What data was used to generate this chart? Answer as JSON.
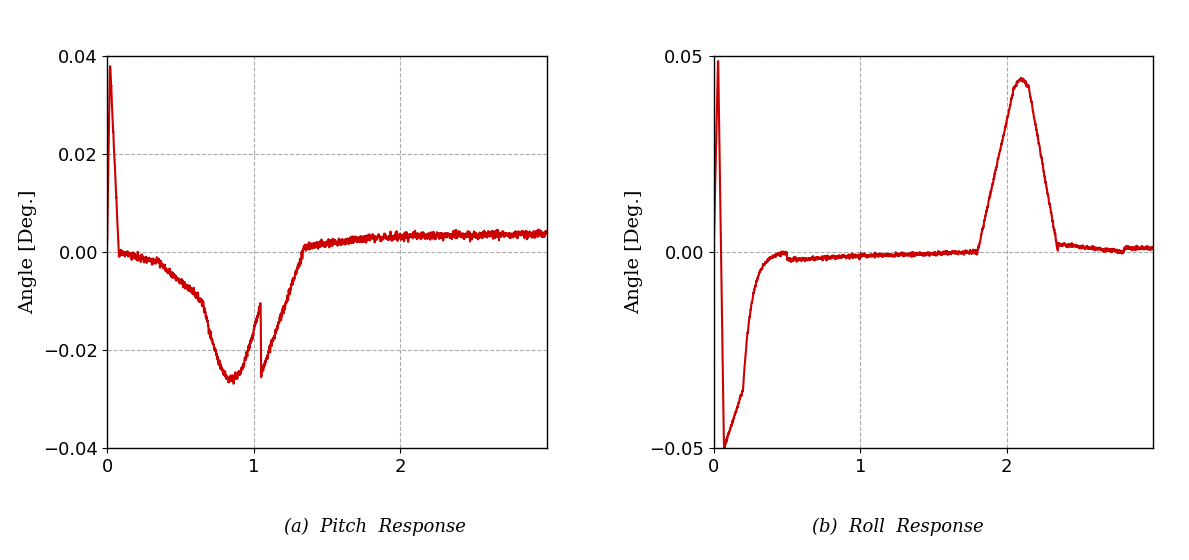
{
  "subplot_a_title": "(a)  Pitch  Response",
  "subplot_b_title": "(b)  Roll  Response",
  "ylabel": "Angle [Deg.]",
  "pitch_xlim": [
    0,
    3
  ],
  "pitch_ylim": [
    -0.04,
    0.04
  ],
  "pitch_xticks": [
    0,
    1,
    2
  ],
  "pitch_yticks": [
    -0.04,
    -0.02,
    0,
    0.02,
    0.04
  ],
  "roll_xlim": [
    0,
    3
  ],
  "roll_ylim": [
    -0.05,
    0.05
  ],
  "roll_xticks": [
    0,
    1,
    2
  ],
  "roll_yticks": [
    -0.05,
    0,
    0.05
  ],
  "line_color": "#cc0000",
  "grid_color": "#aaaaaa",
  "background_color": "#ffffff",
  "font_size": 13,
  "label_font_size": 14
}
